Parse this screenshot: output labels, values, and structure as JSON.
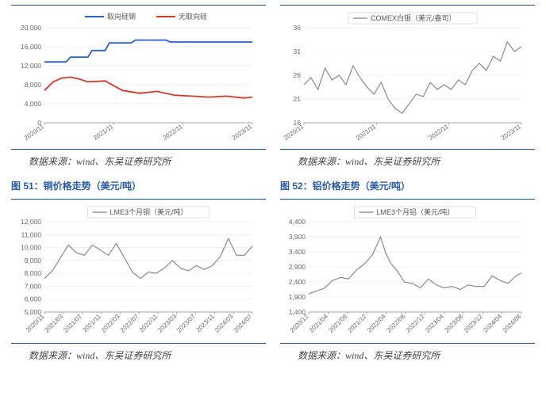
{
  "row1": {
    "chartA": {
      "type": "line",
      "series": [
        {
          "name": "取向硅钢",
          "color": "#2a5fd0",
          "points": [
            [
              0,
              12800
            ],
            [
              5,
              12800
            ],
            [
              6,
              13800
            ],
            [
              10,
              13800
            ],
            [
              11,
              15200
            ],
            [
              14,
              15200
            ],
            [
              15,
              16800
            ],
            [
              20,
              16800
            ],
            [
              21,
              17400
            ],
            [
              28,
              17400
            ],
            [
              29,
              17000
            ],
            [
              48,
              17000
            ]
          ]
        },
        {
          "name": "无取向硅",
          "color": "#d03a2a",
          "points": [
            [
              0,
              6800
            ],
            [
              2,
              8600
            ],
            [
              4,
              9400
            ],
            [
              6,
              9600
            ],
            [
              8,
              9200
            ],
            [
              10,
              8600
            ],
            [
              14,
              8800
            ],
            [
              18,
              6800
            ],
            [
              22,
              6200
            ],
            [
              26,
              6600
            ],
            [
              30,
              5800
            ],
            [
              34,
              5600
            ],
            [
              38,
              5400
            ],
            [
              42,
              5600
            ],
            [
              46,
              5200
            ],
            [
              48,
              5400
            ]
          ]
        }
      ],
      "y": {
        "min": 0,
        "max": 20000,
        "step": 4000
      },
      "x_labels": [
        "2020/11",
        "2021/11",
        "2022/11",
        "2023/11"
      ],
      "legend_box": "#d9d9d9",
      "grid_color": "#e6e6e6",
      "line_width": 1.8
    },
    "chartB": {
      "type": "line",
      "series": [
        {
          "name": "COMEX白银（美元/盎司）",
          "color": "#808080",
          "points": [
            [
              0,
              24
            ],
            [
              2,
              25.5
            ],
            [
              4,
              23
            ],
            [
              6,
              27.5
            ],
            [
              8,
              25
            ],
            [
              10,
              26
            ],
            [
              12,
              24
            ],
            [
              14,
              28
            ],
            [
              16,
              25.5
            ],
            [
              18,
              23.5
            ],
            [
              20,
              22
            ],
            [
              22,
              24.5
            ],
            [
              24,
              21
            ],
            [
              26,
              19
            ],
            [
              28,
              18
            ],
            [
              30,
              20
            ],
            [
              32,
              22
            ],
            [
              34,
              21.5
            ],
            [
              36,
              24.5
            ],
            [
              38,
              23
            ],
            [
              40,
              24
            ],
            [
              42,
              23
            ],
            [
              44,
              25
            ],
            [
              46,
              24
            ],
            [
              48,
              27
            ],
            [
              50,
              28.5
            ],
            [
              52,
              27
            ],
            [
              54,
              30
            ],
            [
              56,
              29
            ],
            [
              58,
              33
            ],
            [
              60,
              31
            ],
            [
              62,
              32
            ]
          ]
        }
      ],
      "y": {
        "min": 16,
        "max": 36,
        "step": 5
      },
      "x_labels": [
        "2020/11",
        "2021/11",
        "2022/11",
        "2023/11"
      ],
      "legend_box": "#d9d9d9",
      "grid_color": "#e6e6e6",
      "line_width": 1.1
    }
  },
  "row1_source": "数据来源：wind、东吴证券研究所",
  "fig51_title": "图 51：铜价格走势（美元/吨）",
  "fig52_title": "图 52：铝价格走势（美元/吨）",
  "row2": {
    "chartA": {
      "type": "line",
      "series": [
        {
          "name": "LME3个月铜（美元/吨）",
          "color": "#808080",
          "points": [
            [
              0,
              7600
            ],
            [
              3,
              8200
            ],
            [
              6,
              9200
            ],
            [
              9,
              10200
            ],
            [
              12,
              9600
            ],
            [
              15,
              9400
            ],
            [
              18,
              10200
            ],
            [
              21,
              9800
            ],
            [
              24,
              9400
            ],
            [
              27,
              10300
            ],
            [
              30,
              9200
            ],
            [
              33,
              8100
            ],
            [
              36,
              7600
            ],
            [
              39,
              8100
            ],
            [
              42,
              8000
            ],
            [
              45,
              8400
            ],
            [
              48,
              9000
            ],
            [
              51,
              8400
            ],
            [
              54,
              8200
            ],
            [
              57,
              8600
            ],
            [
              60,
              8300
            ],
            [
              63,
              8600
            ],
            [
              66,
              9300
            ],
            [
              69,
              10700
            ],
            [
              72,
              9400
            ],
            [
              75,
              9400
            ],
            [
              78,
              10100
            ]
          ]
        }
      ],
      "y": {
        "min": 5000,
        "max": 12000,
        "step": 1000
      },
      "x_labels": [
        "2020/11",
        "2021/03",
        "2021/07",
        "2021/11",
        "2022/03",
        "2022/07",
        "2022/11",
        "2023/03",
        "2023/07",
        "2023/11",
        "2024/03",
        "2024/07"
      ],
      "legend_box": "#d9d9d9",
      "grid_color": "#e6e6e6",
      "line_width": 1.1
    },
    "chartB": {
      "type": "line",
      "series": [
        {
          "name": "LME3个月铝（美元/吨）",
          "color": "#808080",
          "points": [
            [
              0,
              2000
            ],
            [
              3,
              2100
            ],
            [
              6,
              2200
            ],
            [
              9,
              2450
            ],
            [
              12,
              2550
            ],
            [
              15,
              2500
            ],
            [
              18,
              2800
            ],
            [
              21,
              3000
            ],
            [
              24,
              3300
            ],
            [
              27,
              3900
            ],
            [
              29,
              3350
            ],
            [
              31,
              3000
            ],
            [
              33,
              2800
            ],
            [
              36,
              2400
            ],
            [
              39,
              2350
            ],
            [
              42,
              2200
            ],
            [
              45,
              2500
            ],
            [
              48,
              2300
            ],
            [
              51,
              2200
            ],
            [
              54,
              2250
            ],
            [
              57,
              2150
            ],
            [
              60,
              2300
            ],
            [
              63,
              2250
            ],
            [
              66,
              2250
            ],
            [
              69,
              2600
            ],
            [
              72,
              2450
            ],
            [
              75,
              2350
            ],
            [
              78,
              2600
            ],
            [
              80,
              2700
            ]
          ]
        }
      ],
      "y": {
        "min": 1400,
        "max": 4400,
        "step": 500
      },
      "x_labels": [
        "2020/12",
        "2021/04",
        "2021/08",
        "2021/12",
        "2022/04",
        "2022/08",
        "2022/12",
        "2023/04",
        "2023/08",
        "2023/12",
        "2024/04",
        "2024/08"
      ],
      "legend_box": "#d9d9d9",
      "grid_color": "#e6e6e6",
      "line_width": 1.1
    }
  },
  "row2_source": "数据来源：wind、东吴证券研究所"
}
